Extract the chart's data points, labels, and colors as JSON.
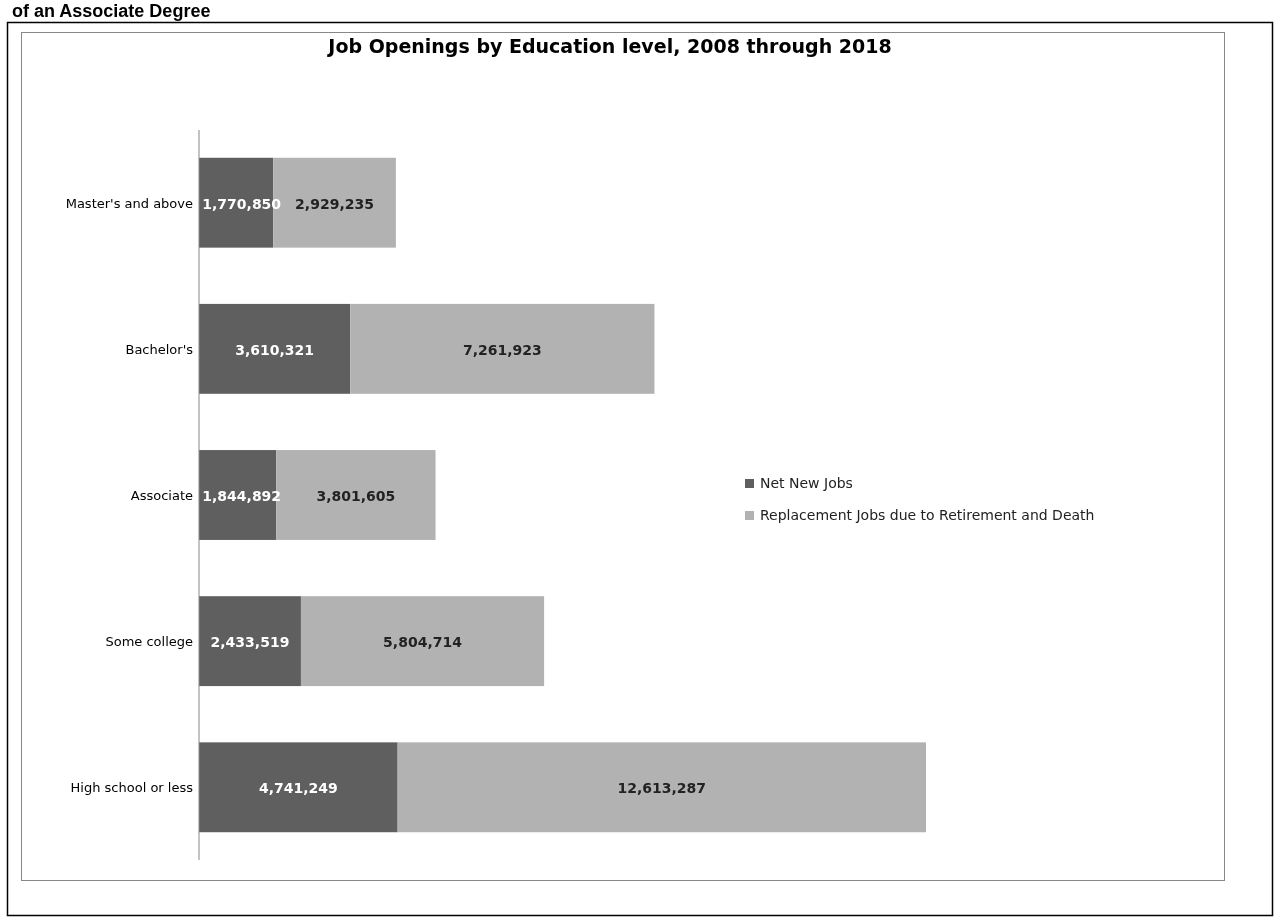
{
  "chart_data": {
    "type": "bar",
    "orientation": "horizontal",
    "stacked": true,
    "title": "Job Openings by Education level, 2008 through 2018",
    "annotations": [
      "of an Associate Degree"
    ],
    "categories": [
      "Master's and above",
      "Bachelor's",
      "Associate",
      "Some college",
      "High school or less"
    ],
    "series": [
      {
        "name": "Net New Jobs",
        "color": "#5f5f5f",
        "values": [
          1770850,
          3610321,
          1844892,
          2433519,
          4741249
        ],
        "value_labels": [
          "1,770,850",
          "3,610,321",
          "1,844,892",
          "2,433,519",
          "4,741,249"
        ]
      },
      {
        "name": "Replacement Jobs due to Retirement and Death",
        "color": "#b2b2b2",
        "values": [
          2929235,
          7261923,
          3801605,
          5804714,
          12613287
        ],
        "value_labels": [
          "2,929,235",
          "7,261,923",
          "3,801,605",
          "5,804,714",
          "12,613,287"
        ]
      }
    ],
    "legend": "right",
    "grid": false
  }
}
